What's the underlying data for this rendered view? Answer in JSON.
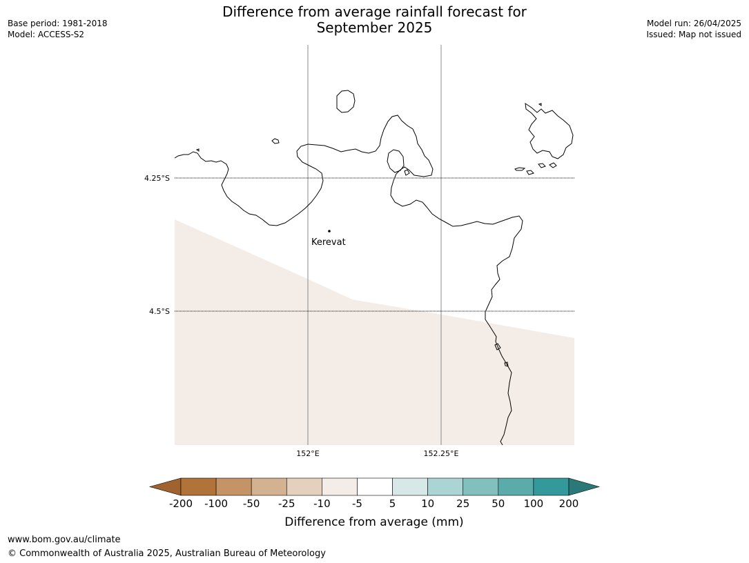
{
  "title_line1": "Difference from average rainfall forecast for",
  "title_line2": "September 2025",
  "meta_left": {
    "base_period": "Base period: 1981-2018",
    "model": "Model: ACCESS-S2"
  },
  "meta_right": {
    "model_run": "Model run: 26/04/2025",
    "issued": "Issued: Map not issued"
  },
  "map": {
    "lat_labels": [
      "4.25°S",
      "4.5°S"
    ],
    "lon_labels": [
      "152°E",
      "152.25°E"
    ],
    "place": "Kerevat",
    "land_outline_color": "#000000",
    "shaded_region_color": "#f4ece6"
  },
  "legend": {
    "title": "Difference from average (mm)",
    "ticks": [
      "-200",
      "-100",
      "-50",
      "-25",
      "-10",
      "-5",
      "5",
      "10",
      "25",
      "50",
      "100",
      "200"
    ],
    "colors": [
      "#a0622e",
      "#b07339",
      "#c49466",
      "#d4b291",
      "#e5d0bd",
      "#f4ece6",
      "#ffffff",
      "#d6e8e8",
      "#abd5d4",
      "#82c0bd",
      "#5aabaa",
      "#33999a",
      "#2a7878"
    ]
  },
  "footer": {
    "url": "www.bom.gov.au/climate",
    "copyright": "© Commonwealth of Australia 2025, Australian Bureau of Meteorology"
  }
}
